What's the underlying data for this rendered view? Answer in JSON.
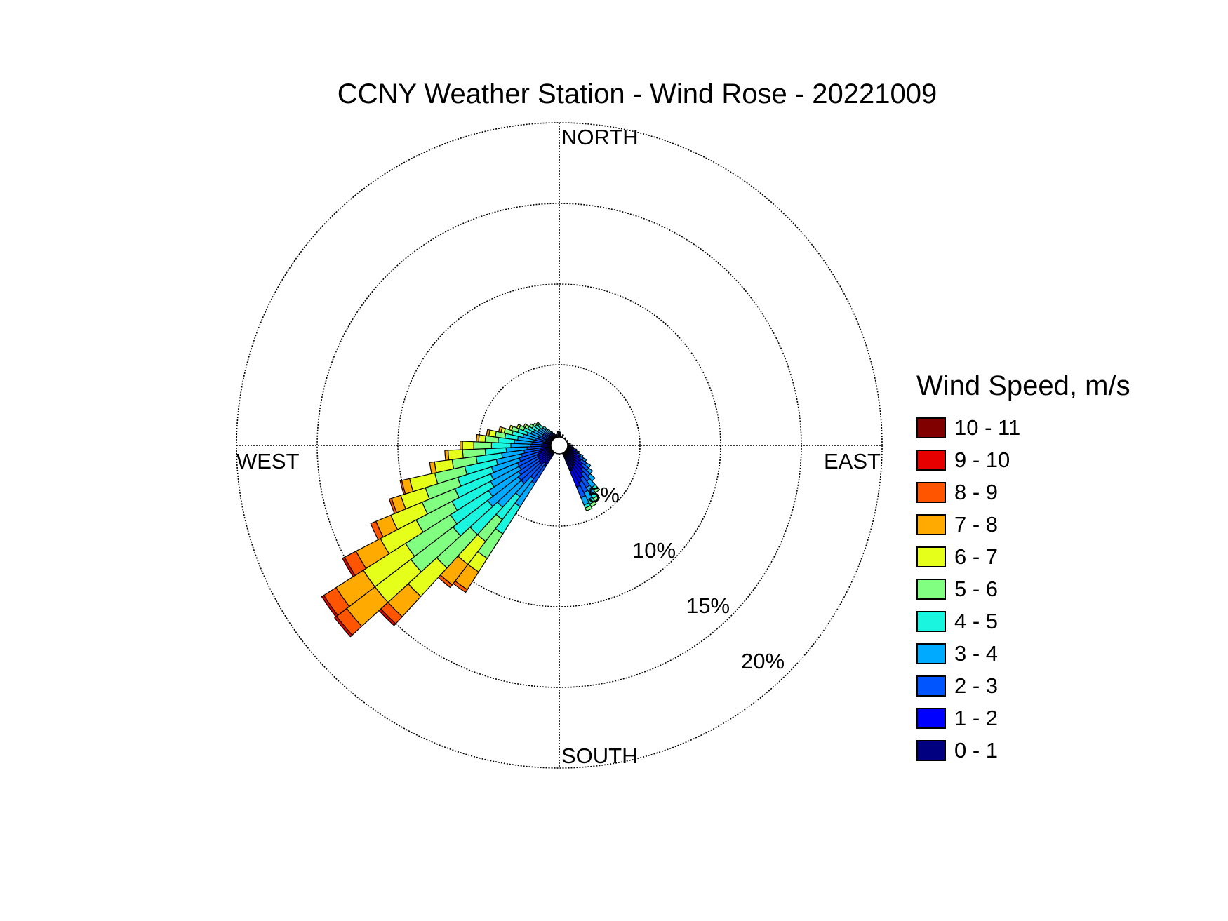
{
  "chart_data": {
    "type": "wind-rose",
    "title": "CCNY Weather Station - Wind Rose - 20221009",
    "directions": [
      "NORTH",
      "EAST",
      "SOUTH",
      "WEST"
    ],
    "ring_labels": [
      "5%",
      "10%",
      "15%",
      "20%"
    ],
    "rlim": [
      0,
      20
    ],
    "grid": true,
    "legend_placement": "right",
    "legend_title": "Wind Speed, m/s",
    "speed_bins": [
      {
        "label": "0 - 1",
        "color": "#000080"
      },
      {
        "label": "1 - 2",
        "color": "#0000ff"
      },
      {
        "label": "2 - 3",
        "color": "#0055ff"
      },
      {
        "label": "3 - 4",
        "color": "#00aaff"
      },
      {
        "label": "4 - 5",
        "color": "#1af5e0"
      },
      {
        "label": "5 - 6",
        "color": "#80ff80"
      },
      {
        "label": "6 - 7",
        "color": "#e6ff1a"
      },
      {
        "label": "7 - 8",
        "color": "#ffaa00"
      },
      {
        "label": "8 - 9",
        "color": "#ff5500"
      },
      {
        "label": "9 - 10",
        "color": "#e60000"
      },
      {
        "label": "10 - 11",
        "color": "#800000"
      }
    ],
    "sector_width_deg": 5,
    "sectors": [
      {
        "direction_deg": 100,
        "cumulative": [
          0.5,
          0.8,
          0.9
        ]
      },
      {
        "direction_deg": 105,
        "cumulative": [
          0.6,
          0.9,
          1.1
        ]
      },
      {
        "direction_deg": 110,
        "cumulative": [
          0.8,
          1.1,
          1.3
        ]
      },
      {
        "direction_deg": 115,
        "cumulative": [
          0.9,
          1.2,
          1.45,
          1.6
        ]
      },
      {
        "direction_deg": 120,
        "cumulative": [
          1.0,
          1.4,
          1.7,
          1.9
        ]
      },
      {
        "direction_deg": 125,
        "cumulative": [
          1.1,
          1.6,
          2.0,
          2.3
        ]
      },
      {
        "direction_deg": 130,
        "cumulative": [
          1.2,
          1.8,
          2.3,
          2.6
        ]
      },
      {
        "direction_deg": 135,
        "cumulative": [
          1.3,
          2.0,
          2.6,
          3.0
        ]
      },
      {
        "direction_deg": 140,
        "cumulative": [
          1.4,
          2.2,
          2.8,
          3.3,
          3.5,
          3.7
        ]
      },
      {
        "direction_deg": 145,
        "cumulative": [
          1.5,
          2.4,
          3.1,
          3.6,
          3.9,
          4.1
        ]
      },
      {
        "direction_deg": 150,
        "cumulative": [
          1.6,
          2.6,
          3.3,
          3.8,
          4.1,
          4.3
        ]
      },
      {
        "direction_deg": 155,
        "cumulative": [
          1.7,
          2.8,
          3.5,
          4.0,
          4.2,
          4.4
        ]
      },
      {
        "direction_deg": 215,
        "cumulative": [
          0.5,
          1.5,
          2.8,
          4.5,
          6.5,
          8.3,
          9.3,
          10.6,
          10.8
        ]
      },
      {
        "direction_deg": 220,
        "cumulative": [
          0.5,
          1.4,
          2.6,
          4.0,
          5.8,
          7.5,
          9.3,
          10.9,
          11.1
        ]
      },
      {
        "direction_deg": 225,
        "cumulative": [
          0.5,
          1.6,
          3.2,
          5.2,
          7.5,
          10.3,
          12.7,
          14.4,
          15.0,
          15.15
        ]
      },
      {
        "direction_deg": 230,
        "cumulative": [
          0.5,
          1.6,
          3.2,
          5.6,
          8.3,
          11.6,
          14.4,
          16.6,
          17.4,
          17.55
        ]
      },
      {
        "direction_deg": 235,
        "cumulative": [
          0.5,
          1.5,
          3.0,
          5.2,
          8.0,
          11.3,
          14.4,
          16.4,
          17.3,
          17.45
        ]
      },
      {
        "direction_deg": 240,
        "cumulative": [
          0.5,
          1.5,
          2.8,
          4.8,
          7.5,
          10.0,
          12.5,
          14.2,
          15.0,
          15.15
        ]
      },
      {
        "direction_deg": 245,
        "cumulative": [
          0.5,
          1.5,
          2.8,
          4.6,
          7.0,
          9.2,
          11.3,
          12.3,
          12.65
        ]
      },
      {
        "direction_deg": 250,
        "cumulative": [
          0.5,
          1.4,
          2.6,
          4.4,
          6.6,
          8.7,
          10.3,
          10.9,
          11.05
        ]
      },
      {
        "direction_deg": 255,
        "cumulative": [
          0.5,
          1.3,
          2.4,
          4.0,
          6.0,
          7.9,
          9.5,
          10.0,
          10.1
        ]
      },
      {
        "direction_deg": 260,
        "cumulative": [
          0.5,
          1.2,
          2.2,
          3.6,
          5.2,
          6.7,
          7.8,
          8.1
        ]
      },
      {
        "direction_deg": 265,
        "cumulative": [
          0.5,
          1.1,
          2.0,
          3.3,
          4.6,
          6.0,
          6.9,
          7.1
        ]
      },
      {
        "direction_deg": 270,
        "cumulative": [
          0.5,
          1.1,
          1.8,
          3.0,
          4.2,
          5.3,
          6.0,
          6.15
        ]
      },
      {
        "direction_deg": 275,
        "cumulative": [
          0.5,
          1.0,
          1.7,
          2.8,
          3.8,
          4.6,
          5.0,
          5.15
        ]
      },
      {
        "direction_deg": 280,
        "cumulative": [
          0.5,
          1.0,
          1.6,
          2.6,
          3.4,
          4.0,
          4.4,
          4.55
        ]
      },
      {
        "direction_deg": 285,
        "cumulative": [
          0.5,
          0.9,
          1.5,
          2.3,
          3.0,
          3.5,
          3.7,
          3.85
        ]
      },
      {
        "direction_deg": 290,
        "cumulative": [
          0.5,
          0.9,
          1.4,
          2.1,
          2.7,
          3.1,
          3.25
        ]
      },
      {
        "direction_deg": 295,
        "cumulative": [
          0.5,
          0.9,
          1.3,
          1.9,
          2.4,
          2.7,
          2.85
        ]
      },
      {
        "direction_deg": 300,
        "cumulative": [
          0.5,
          0.8,
          1.2,
          1.8,
          2.2,
          2.4,
          2.5
        ]
      },
      {
        "direction_deg": 305,
        "cumulative": [
          0.5,
          0.8,
          1.2,
          1.6,
          2.0,
          2.2
        ]
      },
      {
        "direction_deg": 310,
        "cumulative": [
          0.5,
          0.8,
          1.2,
          1.6,
          1.9,
          2.05
        ]
      },
      {
        "direction_deg": 315,
        "cumulative": [
          0.5,
          0.8,
          1.1,
          1.5,
          1.8,
          1.95
        ]
      },
      {
        "direction_deg": 320,
        "cumulative": [
          0.5,
          0.7,
          1.0,
          1.3,
          1.5
        ]
      },
      {
        "direction_deg": 325,
        "cumulative": [
          0.5,
          0.7,
          0.9,
          1.1,
          1.2
        ]
      },
      {
        "direction_deg": 330,
        "cumulative": [
          0.5,
          0.7,
          0.85,
          1.0
        ]
      },
      {
        "direction_deg": 335,
        "cumulative": [
          0.5,
          0.65,
          0.8
        ]
      },
      {
        "direction_deg": 340,
        "cumulative": [
          0.5,
          0.6,
          0.7
        ]
      },
      {
        "direction_deg": 345,
        "cumulative": [
          0.5,
          0.6,
          0.7
        ]
      },
      {
        "direction_deg": 355,
        "cumulative": [
          0.5,
          0.6,
          0.75,
          0.85
        ]
      },
      {
        "direction_deg": 0,
        "cumulative": [
          0.5,
          0.6,
          0.7,
          0.8,
          0.9
        ]
      },
      {
        "direction_deg": 5,
        "cumulative": [
          0.5,
          0.6,
          0.7,
          0.8
        ]
      },
      {
        "direction_deg": 20,
        "cumulative": [
          0.5,
          0.6,
          0.7
        ]
      },
      {
        "direction_deg": 40,
        "cumulative": [
          0.5,
          0.6
        ]
      },
      {
        "direction_deg": 60,
        "cumulative": [
          0.5,
          0.6
        ]
      },
      {
        "direction_deg": 80,
        "cumulative": [
          0.5,
          0.6,
          0.7
        ]
      },
      {
        "direction_deg": 90,
        "cumulative": [
          0.5,
          0.7,
          0.8
        ]
      },
      {
        "direction_deg": 95,
        "cumulative": [
          0.5,
          0.7,
          0.85
        ]
      }
    ]
  }
}
